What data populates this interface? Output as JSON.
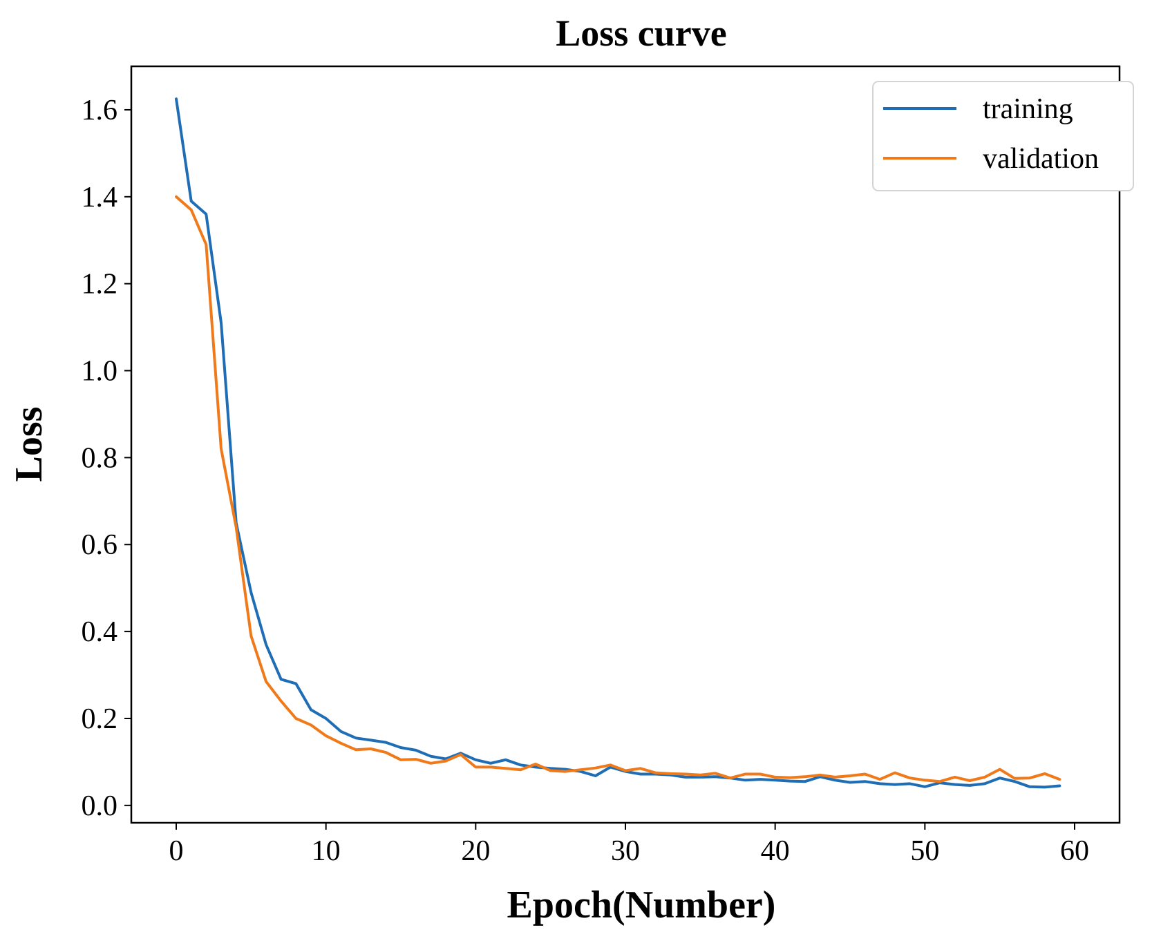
{
  "chart_data": {
    "type": "line",
    "title": "Loss curve",
    "xlabel": "Epoch(Number)",
    "ylabel": "Loss",
    "xlim": [
      -3,
      63
    ],
    "ylim": [
      -0.04,
      1.7
    ],
    "xticks": [
      0,
      10,
      20,
      30,
      40,
      50,
      60
    ],
    "xtick_labels": [
      "0",
      "10",
      "20",
      "30",
      "40",
      "50",
      "60"
    ],
    "yticks": [
      0.0,
      0.2,
      0.4,
      0.6,
      0.8,
      1.0,
      1.2,
      1.4,
      1.6
    ],
    "ytick_labels": [
      "0.0",
      "0.2",
      "0.4",
      "0.6",
      "0.8",
      "1.0",
      "1.2",
      "1.4",
      "1.6"
    ],
    "grid": false,
    "legend_position": "top-right",
    "x": [
      0,
      1,
      2,
      3,
      4,
      5,
      6,
      7,
      8,
      9,
      10,
      11,
      12,
      13,
      14,
      15,
      16,
      17,
      18,
      19,
      20,
      21,
      22,
      23,
      24,
      25,
      26,
      27,
      28,
      29,
      30,
      31,
      32,
      33,
      34,
      35,
      36,
      37,
      38,
      39,
      40,
      41,
      42,
      43,
      44,
      45,
      46,
      47,
      48,
      49,
      50,
      51,
      52,
      53,
      54,
      55,
      56,
      57,
      58,
      59
    ],
    "series": [
      {
        "name": "training",
        "color": "#1f6db5",
        "values": [
          1.625,
          1.39,
          1.36,
          1.11,
          0.65,
          0.49,
          0.37,
          0.29,
          0.28,
          0.22,
          0.2,
          0.17,
          0.155,
          0.15,
          0.145,
          0.133,
          0.127,
          0.113,
          0.107,
          0.12,
          0.105,
          0.097,
          0.105,
          0.093,
          0.088,
          0.085,
          0.083,
          0.078,
          0.068,
          0.088,
          0.078,
          0.072,
          0.072,
          0.07,
          0.065,
          0.065,
          0.066,
          0.063,
          0.058,
          0.06,
          0.058,
          0.056,
          0.055,
          0.066,
          0.058,
          0.053,
          0.055,
          0.05,
          0.048,
          0.05,
          0.043,
          0.052,
          0.048,
          0.046,
          0.05,
          0.063,
          0.055,
          0.043,
          0.042,
          0.045
        ]
      },
      {
        "name": "validation",
        "color": "#f07a1a",
        "values": [
          1.4,
          1.37,
          1.29,
          0.82,
          0.64,
          0.39,
          0.285,
          0.24,
          0.2,
          0.185,
          0.16,
          0.143,
          0.128,
          0.13,
          0.122,
          0.105,
          0.106,
          0.097,
          0.102,
          0.117,
          0.088,
          0.088,
          0.085,
          0.082,
          0.095,
          0.08,
          0.078,
          0.082,
          0.086,
          0.093,
          0.08,
          0.085,
          0.075,
          0.073,
          0.072,
          0.07,
          0.074,
          0.063,
          0.072,
          0.072,
          0.065,
          0.064,
          0.066,
          0.07,
          0.065,
          0.068,
          0.072,
          0.06,
          0.075,
          0.063,
          0.058,
          0.055,
          0.065,
          0.057,
          0.065,
          0.083,
          0.062,
          0.063,
          0.073,
          0.06
        ]
      }
    ]
  }
}
